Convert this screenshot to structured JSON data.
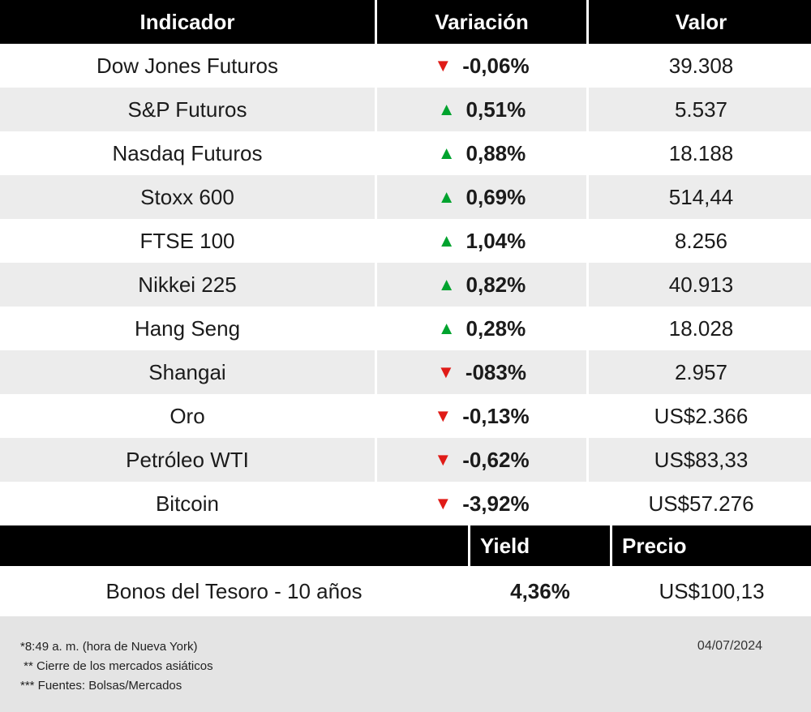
{
  "market_table": {
    "headers": {
      "indicator": "Indicador",
      "variation": "Variación",
      "value": "Valor"
    },
    "rows": [
      {
        "indicator": "Dow Jones Futuros",
        "direction": "down",
        "variation": "-0,06%",
        "value": "39.308"
      },
      {
        "indicator": "S&P Futuros",
        "direction": "up",
        "variation": "0,51%",
        "value": "5.537"
      },
      {
        "indicator": "Nasdaq Futuros",
        "direction": "up",
        "variation": "0,88%",
        "value": "18.188"
      },
      {
        "indicator": "Stoxx 600",
        "direction": "up",
        "variation": "0,69%",
        "value": "514,44"
      },
      {
        "indicator": "FTSE 100",
        "direction": "up",
        "variation": "1,04%",
        "value": "8.256"
      },
      {
        "indicator": "Nikkei 225",
        "direction": "up",
        "variation": "0,82%",
        "value": "40.913"
      },
      {
        "indicator": "Hang Seng",
        "direction": "up",
        "variation": "0,28%",
        "value": "18.028"
      },
      {
        "indicator": "Shangai",
        "direction": "down",
        "variation": "-083%",
        "value": "2.957"
      },
      {
        "indicator": "Oro",
        "direction": "down",
        "variation": "-0,13%",
        "value": "US$2.366"
      },
      {
        "indicator": "Petróleo WTI",
        "direction": "down",
        "variation": "-0,62%",
        "value": "US$83,33"
      },
      {
        "indicator": "Bitcoin",
        "direction": "down",
        "variation": "-3,92%",
        "value": "US$57.276"
      }
    ]
  },
  "bonds_table": {
    "headers": {
      "yield": "Yield",
      "price": "Precio"
    },
    "row": {
      "name": "Bonos del Tesoro - 10 años",
      "yield": "4,36%",
      "price": "US$100,13"
    }
  },
  "footer": {
    "notes": [
      "*8:49 a. m. (hora de Nueva York)",
      " ** Cierre de los mercados asiáticos",
      "*** Fuentes: Bolsas/Mercados"
    ],
    "date": "04/07/2024"
  },
  "colors": {
    "up_green": "#00a32e",
    "down_red": "#e01b17",
    "header_bg": "#000000",
    "row_alt_bg": "#ececec",
    "footer_bg": "#e4e4e4"
  },
  "chart_data": {
    "type": "table",
    "title": "",
    "columns": [
      "Indicador",
      "Variación",
      "Valor"
    ],
    "rows": [
      [
        "Dow Jones Futuros",
        "-0,06%",
        "39.308"
      ],
      [
        "S&P Futuros",
        "0,51%",
        "5.537"
      ],
      [
        "Nasdaq Futuros",
        "0,88%",
        "18.188"
      ],
      [
        "Stoxx 600",
        "0,69%",
        "514,44"
      ],
      [
        "FTSE 100",
        "1,04%",
        "8.256"
      ],
      [
        "Nikkei 225",
        "0,82%",
        "40.913"
      ],
      [
        "Hang Seng",
        "0,28%",
        "18.028"
      ],
      [
        "Shangai",
        "-083%",
        "2.957"
      ],
      [
        "Oro",
        "-0,13%",
        "US$2.366"
      ],
      [
        "Petróleo WTI",
        "-0,62%",
        "US$83,33"
      ],
      [
        "Bitcoin",
        "-3,92%",
        "US$57.276"
      ]
    ],
    "secondary_table": {
      "columns": [
        "",
        "Yield",
        "Precio"
      ],
      "rows": [
        [
          "Bonos del Tesoro - 10 años",
          "4,36%",
          "US$100,13"
        ]
      ]
    }
  }
}
